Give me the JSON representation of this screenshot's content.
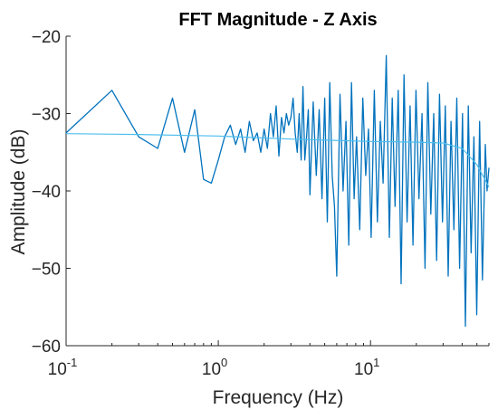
{
  "chart_data": {
    "type": "line",
    "title": "FFT Magnitude - Z Axis",
    "xlabel": "Frequency (Hz)",
    "ylabel": "Amplitude (dB)",
    "x_scale": "log",
    "xlim": [
      0.1,
      60
    ],
    "ylim": [
      -60,
      -20
    ],
    "xticks": [
      {
        "value": 0.1,
        "base": "10",
        "exp": "-1"
      },
      {
        "value": 1,
        "base": "10",
        "exp": "0"
      },
      {
        "value": 10,
        "base": "10",
        "exp": "1"
      }
    ],
    "yticks": [
      {
        "value": -20,
        "label": "−20"
      },
      {
        "value": -30,
        "label": "−30"
      },
      {
        "value": -40,
        "label": "−40"
      },
      {
        "value": -50,
        "label": "−50"
      },
      {
        "value": -60,
        "label": "−60"
      }
    ],
    "grid": false,
    "colors": {
      "raw": "#0072BD",
      "smooth": "#4DBEEE",
      "axis": "#262626"
    },
    "series": [
      {
        "x": [
          0.1,
          0.2,
          0.3,
          0.4,
          0.5,
          0.6,
          0.7,
          0.8,
          0.9,
          1.0,
          1.1,
          1.2,
          1.3,
          1.4,
          1.5,
          1.6,
          1.7,
          1.8,
          1.9,
          2.0,
          2.1,
          2.2,
          2.3,
          2.4,
          2.5,
          2.6,
          2.7,
          2.8,
          2.9,
          3.0,
          3.1,
          3.2,
          3.3,
          3.4,
          3.5,
          3.6,
          3.7,
          3.8,
          3.9,
          4.0,
          4.2,
          4.4,
          4.6,
          4.8,
          5.0,
          5.2,
          5.4,
          5.6,
          5.8,
          6.0,
          6.3,
          6.6,
          6.9,
          7.2,
          7.5,
          7.8,
          8.1,
          8.5,
          8.9,
          9.3,
          9.7,
          10.1,
          10.6,
          11.1,
          11.6,
          12.1,
          12.7,
          13.3,
          13.9,
          14.5,
          15.2,
          15.9,
          16.6,
          17.4,
          18.2,
          19.0,
          19.9,
          20.8,
          21.8,
          22.8,
          23.8,
          24.9,
          26.0,
          27.2,
          28.4,
          29.7,
          31.0,
          32.4,
          33.8,
          35.3,
          36.9,
          38.5,
          40.2,
          42.0,
          43.9,
          45.8,
          47.8,
          49.9,
          52.1,
          54.4,
          56.8,
          58.3,
          60.0
        ],
        "y": [
          -32.5,
          -27.0,
          -33.0,
          -34.5,
          -28.0,
          -35.0,
          -29.5,
          -38.5,
          -39.0,
          -36.0,
          -33.0,
          -31.5,
          -34.0,
          -32.0,
          -35.0,
          -31.0,
          -33.5,
          -32.5,
          -35.0,
          -32.0,
          -34.5,
          -30.0,
          -33.0,
          -29.0,
          -35.5,
          -30.5,
          -32.5,
          -30.0,
          -31.5,
          -30.5,
          -28.0,
          -32.5,
          -35.0,
          -30.0,
          -36.0,
          -26.5,
          -36.0,
          -33.0,
          -29.5,
          -40.5,
          -28.5,
          -38.0,
          -29.5,
          -41.0,
          -28.0,
          -44.0,
          -26.0,
          -38.0,
          -42.0,
          -51.0,
          -27.5,
          -40.0,
          -31.0,
          -47.0,
          -26.0,
          -41.0,
          -33.0,
          -45.0,
          -28.0,
          -38.0,
          -32.0,
          -46.0,
          -27.0,
          -44.0,
          -31.0,
          -39.0,
          -22.5,
          -46.0,
          -28.0,
          -42.0,
          -27.0,
          -52.0,
          -25.0,
          -44.0,
          -29.0,
          -47.0,
          -27.0,
          -41.0,
          -30.0,
          -50.0,
          -26.0,
          -43.0,
          -30.0,
          -49.0,
          -27.5,
          -44.0,
          -29.0,
          -51.0,
          -31.0,
          -45.0,
          -28.0,
          -50.0,
          -30.0,
          -57.5,
          -29.0,
          -48.0,
          -33.0,
          -56.0,
          -31.0,
          -51.5,
          -34.0,
          -40.0,
          -37.0
        ]
      },
      {
        "x": [
          0.1,
          0.3,
          1,
          3,
          10,
          20,
          30,
          40,
          50,
          60
        ],
        "y": [
          -32.6,
          -32.7,
          -32.9,
          -33.3,
          -33.6,
          -33.7,
          -33.8,
          -34.5,
          -36.6,
          -39.5
        ]
      }
    ]
  }
}
